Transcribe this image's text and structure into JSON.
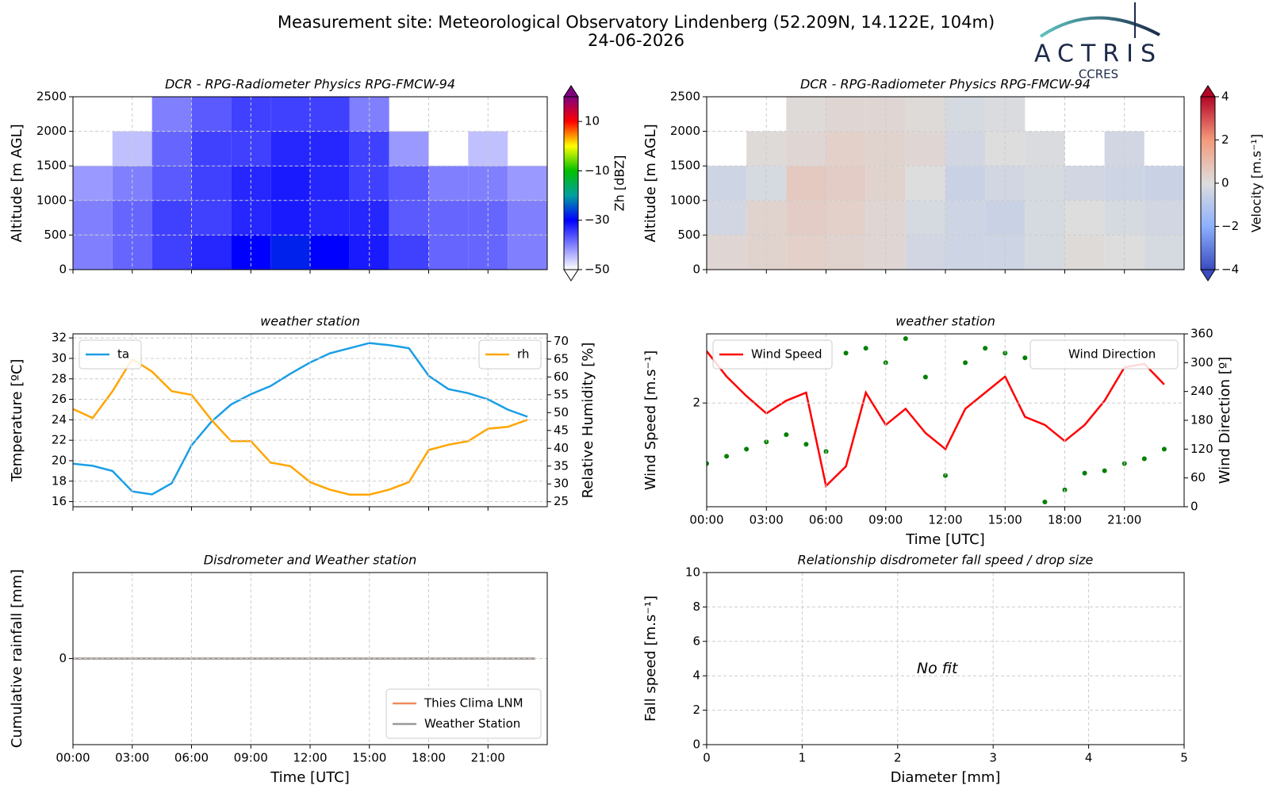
{
  "header": {
    "title": "Measurement site: Meteorological Observatory Lindenberg (52.209N, 14.122E, 104m)",
    "subtitle": "24-06-2026"
  },
  "logo": {
    "name": "ACTRIS",
    "sub": "CCRES"
  },
  "chart_data": [
    {
      "type": "heatmap",
      "title": "DCR - RPG-Radiometer Physics RPG-FMCW-94",
      "ylabel": "Altitude [m AGL]",
      "xlim": [
        0,
        24
      ],
      "ylim": [
        0,
        2500
      ],
      "xticks": [
        0,
        3,
        6,
        9,
        12,
        15,
        18,
        21
      ],
      "xtick_labels": false,
      "yticks": [
        0,
        500,
        1000,
        1500,
        2000,
        2500
      ],
      "grid": true,
      "xbins": [
        0,
        2,
        4,
        6,
        8,
        10,
        12,
        14,
        16,
        18,
        20,
        22,
        24
      ],
      "ybins": [
        0,
        500,
        1000,
        1500,
        2000,
        2500
      ],
      "values": [
        [
          -40,
          -38,
          -35,
          -33,
          -30,
          -28,
          -30,
          -32,
          -35,
          -38,
          -38,
          -40
        ],
        [
          -40,
          -38,
          -35,
          -35,
          -33,
          -32,
          -33,
          -33,
          -37,
          -38,
          -38,
          -40
        ],
        [
          -42,
          -40,
          -37,
          -35,
          -33,
          -32,
          -33,
          -35,
          -37,
          -40,
          -40,
          -42
        ],
        [
          null,
          -45,
          -38,
          -35,
          -35,
          -33,
          -33,
          -35,
          -42,
          null,
          -45,
          null
        ],
        [
          null,
          null,
          -40,
          -37,
          -35,
          -35,
          -35,
          -40,
          null,
          null,
          null,
          null
        ]
      ],
      "colorbar": {
        "label": "Zh [dBZ]",
        "lim": [
          -50,
          20
        ],
        "ticks": [
          {
            "value": -50,
            "label": "−50"
          },
          {
            "value": -30,
            "label": "−30"
          },
          {
            "value": -10,
            "label": "−10"
          },
          10
        ],
        "colors": [
          "#ffffff",
          "#8080ff",
          "#0000ff",
          "#00a0a0",
          "#00c000",
          "#ffff00",
          "#ff0000",
          "#800080"
        ]
      }
    },
    {
      "type": "heatmap",
      "title": "DCR - RPG-Radiometer Physics RPG-FMCW-94",
      "ylabel": "Altitude [m AGL]",
      "xlim": [
        0,
        24
      ],
      "ylim": [
        0,
        2500
      ],
      "xticks": [
        0,
        3,
        6,
        9,
        12,
        15,
        18,
        21
      ],
      "xtick_labels": false,
      "yticks": [
        0,
        500,
        1000,
        1500,
        2000,
        2500
      ],
      "grid": true,
      "xbins": [
        0,
        2,
        4,
        6,
        8,
        10,
        12,
        14,
        16,
        18,
        20,
        22,
        24
      ],
      "ybins": [
        0,
        500,
        1000,
        1500,
        2000,
        2500
      ],
      "values": [
        [
          0.2,
          0.3,
          0.4,
          0.3,
          0.2,
          -0.3,
          -0.4,
          -0.4,
          -0.2,
          0.1,
          0.0,
          -0.2
        ],
        [
          -0.3,
          0.3,
          0.5,
          0.4,
          0.2,
          -0.2,
          -0.4,
          -0.5,
          -0.2,
          0.0,
          -0.2,
          -0.3
        ],
        [
          -0.4,
          -0.2,
          0.6,
          0.5,
          0.3,
          0.0,
          -0.5,
          -0.3,
          -0.2,
          -0.3,
          -0.4,
          -0.5
        ],
        [
          null,
          0.1,
          0.2,
          0.4,
          0.3,
          0.2,
          -0.3,
          0.0,
          -0.1,
          null,
          -0.3,
          null
        ],
        [
          null,
          null,
          0.1,
          0.2,
          0.2,
          0.1,
          -0.2,
          -0.1,
          null,
          null,
          null,
          null
        ]
      ],
      "colorbar": {
        "label": "Velocity [m.s⁻¹]",
        "lim": [
          -4,
          4
        ],
        "ticks": [
          {
            "value": -4,
            "label": "−4"
          },
          {
            "value": -2,
            "label": "−2"
          },
          0,
          2,
          4
        ],
        "colors": [
          "#3b4cc0",
          "#8db0fe",
          "#dddddd",
          "#f49a7b",
          "#b40426"
        ]
      }
    },
    {
      "type": "line",
      "title": "weather station",
      "ylabel": "Temperature [ºC]",
      "y2label": "Relative Humidity [%]",
      "x": [
        0,
        1,
        2,
        3,
        4,
        5,
        6,
        7,
        8,
        9,
        10,
        11,
        12,
        13,
        14,
        15,
        16,
        17,
        18,
        19,
        20,
        21,
        22,
        23
      ],
      "xlim": [
        0,
        24
      ],
      "xticks": [
        0,
        3,
        6,
        9,
        12,
        15,
        18,
        21
      ],
      "xtick_labels": false,
      "ylim": [
        15.5,
        32.4
      ],
      "yticks": [
        16,
        18,
        20,
        22,
        24,
        26,
        28,
        30,
        32
      ],
      "y2lim": [
        23.6,
        72.1
      ],
      "y2ticks": [
        25,
        30,
        35,
        40,
        45,
        50,
        55,
        60,
        65,
        70
      ],
      "grid": true,
      "series": [
        {
          "name": "ta",
          "color": "#1a9ee6",
          "legend": "upper left",
          "values": [
            19.7,
            19.5,
            19.0,
            17.0,
            16.7,
            17.8,
            21.5,
            23.8,
            25.5,
            26.5,
            27.3,
            28.5,
            29.6,
            30.5,
            31.0,
            31.5,
            31.3,
            31.0,
            28.3,
            27.0,
            26.6,
            26.0,
            25.0,
            24.3
          ]
        },
        {
          "name": "rh",
          "color": "#ffa500",
          "axis": "y2",
          "legend": "upper right",
          "values": [
            51,
            48.5,
            56,
            65,
            61.5,
            56,
            55,
            48,
            42,
            42,
            36,
            35,
            30.5,
            28.4,
            27,
            27,
            28.4,
            30.5,
            39.5,
            41,
            42,
            45.5,
            46,
            48
          ]
        }
      ]
    },
    {
      "type": "line",
      "title": "weather station",
      "xlabel": "Time [UTC]",
      "ylabel": "Wind Speed [m.s⁻¹]",
      "y2label": "Wind Direction [º]",
      "x": [
        0,
        1,
        2,
        3,
        4,
        5,
        6,
        7,
        8,
        9,
        10,
        11,
        12,
        13,
        14,
        15,
        16,
        17,
        18,
        19,
        20,
        21,
        22,
        23
      ],
      "xlim": [
        0,
        24
      ],
      "xtick_labels": true,
      "xticks": [
        {
          "value": 0,
          "label": "00:00"
        },
        {
          "value": 3,
          "label": "03:00"
        },
        {
          "value": 6,
          "label": "06:00"
        },
        {
          "value": 9,
          "label": "09:00"
        },
        {
          "value": 12,
          "label": "12:00"
        },
        {
          "value": 15,
          "label": "15:00"
        },
        {
          "value": 18,
          "label": "18:00"
        },
        {
          "value": 21,
          "label": "21:00"
        }
      ],
      "ylim": [
        1.1,
        2.6
      ],
      "yticks": [
        2
      ],
      "y2lim": [
        0,
        360
      ],
      "y2ticks": [
        0,
        60,
        120,
        180,
        240,
        300,
        360
      ],
      "grid": true,
      "series": [
        {
          "name": "Wind Speed",
          "color": "#ff0000",
          "legend": "upper left",
          "values": [
            2.45,
            2.23,
            2.06,
            1.91,
            2.02,
            2.09,
            1.28,
            1.45,
            2.09,
            1.81,
            1.95,
            1.74,
            1.6,
            1.95,
            2.09,
            2.23,
            1.88,
            1.81,
            1.67,
            1.81,
            2.02,
            2.31,
            2.34,
            2.16
          ]
        },
        {
          "name": "Wind Direction",
          "color": "#008000",
          "axis": "y2",
          "kind": "scatter",
          "legend": "upper right",
          "values": [
            90,
            105,
            120,
            135,
            150,
            130,
            115,
            320,
            330,
            300,
            350,
            270,
            65,
            300,
            330,
            320,
            310,
            10,
            35,
            70,
            75,
            90,
            100,
            120
          ]
        }
      ]
    },
    {
      "type": "line",
      "title": "Disdrometer and Weather station",
      "xlabel": "Time [UTC]",
      "ylabel": "Cumulative rainfall [mm]",
      "x": [
        0,
        23.4
      ],
      "xlim": [
        0,
        24
      ],
      "xtick_labels": true,
      "xticks": [
        {
          "value": 0,
          "label": "00:00"
        },
        {
          "value": 3,
          "label": "03:00"
        },
        {
          "value": 6,
          "label": "06:00"
        },
        {
          "value": 9,
          "label": "09:00"
        },
        {
          "value": 12,
          "label": "12:00"
        },
        {
          "value": 15,
          "label": "15:00"
        },
        {
          "value": 18,
          "label": "18:00"
        },
        {
          "value": 21,
          "label": "21:00"
        }
      ],
      "ylim": [
        -0.055,
        0.055
      ],
      "yticks": [
        0
      ],
      "grid": true,
      "series": [
        {
          "name": "Thies Clima LNM",
          "color": "#f08a5d",
          "legend": "lower right",
          "values": [
            0,
            0
          ]
        },
        {
          "name": "Weather Station",
          "color": "#999999",
          "legend": "lower right",
          "values": [
            0,
            0
          ]
        }
      ]
    },
    {
      "type": "scatter",
      "title": "Relationship disdrometer fall speed / drop size",
      "xlabel": "Diameter [mm]",
      "ylabel": "Fall speed [m.s⁻¹]",
      "xlim": [
        0,
        5
      ],
      "xticks": [
        0,
        1,
        2,
        3,
        4,
        5
      ],
      "xtick_labels": true,
      "ylim": [
        0,
        10
      ],
      "yticks": [
        0,
        2,
        4,
        6,
        8,
        10
      ],
      "grid": true,
      "annotation": "No fit",
      "series": []
    }
  ]
}
